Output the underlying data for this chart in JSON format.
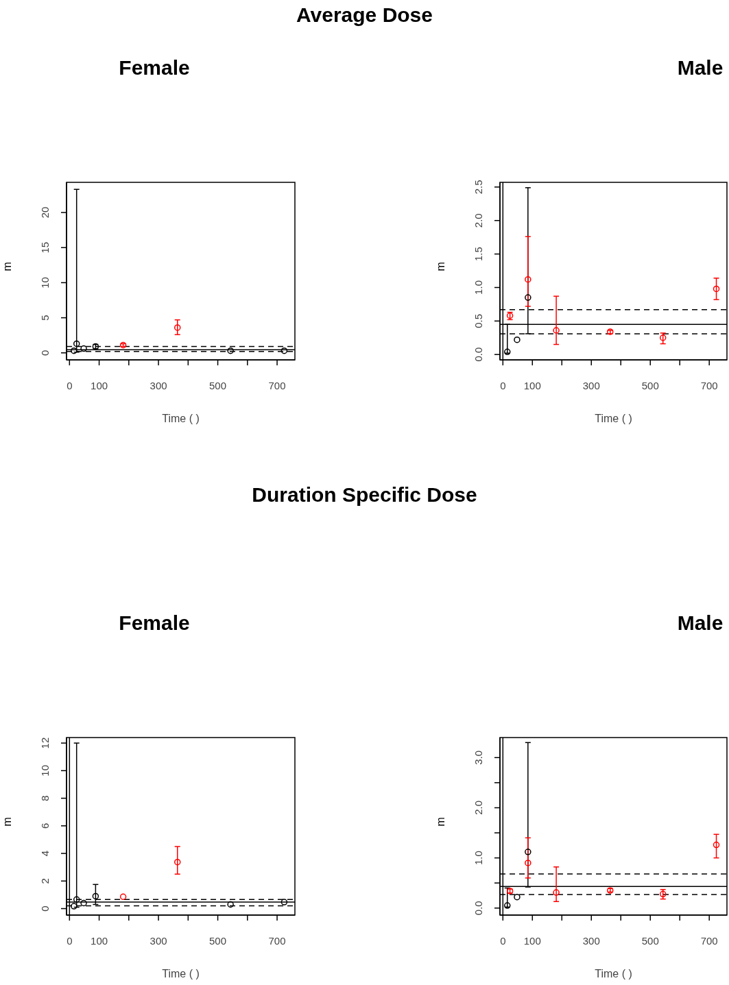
{
  "chart_data": [
    {
      "type": "scatter",
      "title": "Average Dose",
      "subtitle": "Female",
      "xlabel": "Time ( )",
      "ylabel": "m",
      "marker": "circle",
      "xlim": [
        -10,
        760
      ],
      "xticks": [
        0,
        100,
        {
          "value": 200,
          "label": null
        },
        300,
        {
          "value": 400,
          "label": null
        },
        500,
        {
          "value": 600,
          "label": null
        },
        700
      ],
      "ylim": [
        -1,
        24.3
      ],
      "yticks": [
        0,
        5,
        10,
        15,
        20
      ],
      "series": [
        {
          "color": "#000000",
          "x": [
            15,
            24,
            48,
            88,
            543,
            724
          ],
          "values": [
            0.3,
            1.3,
            0.6,
            0.9,
            0.3,
            0.3
          ],
          "errors": [
            null,
            [
              0.1,
              23.3
            ],
            null,
            [
              0.6,
              1.2
            ],
            null,
            null
          ]
        },
        {
          "color": "#ff0000",
          "x": [
            181,
            364
          ],
          "values": [
            1.1,
            3.6
          ],
          "errors": [
            [
              0.9,
              1.3
            ],
            [
              2.6,
              4.7
            ]
          ]
        }
      ],
      "ref_lines": [
        {
          "axis": "y",
          "value": 0.9,
          "line_style": "dashed"
        },
        {
          "axis": "y",
          "value": 0.45,
          "line_style": "solid"
        },
        {
          "axis": "y",
          "value": 0.2,
          "line_style": "dashed"
        }
      ]
    },
    {
      "type": "scatter",
      "subtitle": "Male",
      "xlabel": "Time ( )",
      "ylabel": "m",
      "marker": "circle",
      "xlim": [
        -10,
        760
      ],
      "xticks": [
        0,
        100,
        {
          "value": 200,
          "label": null
        },
        300,
        {
          "value": 400,
          "label": null
        },
        500,
        {
          "value": 600,
          "label": null
        },
        700
      ],
      "ylim": [
        -0.08,
        2.57
      ],
      "yticks": [
        {
          "value": 0,
          "label": "0.0"
        },
        {
          "value": 0.5,
          "label": "0.5"
        },
        {
          "value": 1,
          "label": "1.0"
        },
        {
          "value": 1.5,
          "label": "1.5"
        },
        {
          "value": 2,
          "label": "2.0"
        },
        {
          "value": 2.5,
          "label": "2.5"
        }
      ],
      "series": [
        {
          "color": "#000000",
          "x": [
            15,
            48,
            85
          ],
          "values": [
            0.04,
            0.22,
            0.85
          ],
          "errors": [
            [
              0.02,
              0.45
            ],
            null,
            [
              0.31,
              2.49
            ]
          ]
        },
        {
          "color": "#ff0000",
          "x": [
            24,
            85,
            181,
            364,
            543,
            724
          ],
          "values": [
            0.58,
            1.12,
            0.36,
            0.34,
            0.25,
            0.98
          ],
          "errors": [
            [
              0.52,
              0.63
            ],
            [
              0.72,
              1.76
            ],
            [
              0.15,
              0.87
            ],
            [
              0.31,
              0.36
            ],
            [
              0.16,
              0.32
            ],
            [
              0.82,
              1.14
            ]
          ]
        }
      ],
      "ref_lines": [
        {
          "axis": "x",
          "value": 0,
          "line_style": "solid"
        },
        {
          "axis": "y",
          "value": 0.67,
          "line_style": "dashed"
        },
        {
          "axis": "y",
          "value": 0.45,
          "line_style": "solid"
        },
        {
          "axis": "y",
          "value": 0.31,
          "line_style": "dashed"
        }
      ]
    },
    {
      "type": "scatter",
      "title": "Duration Specific Dose",
      "subtitle": "Female",
      "xlabel": "Time ( )",
      "ylabel": "m",
      "marker": "circle",
      "xlim": [
        -10,
        760
      ],
      "xticks": [
        0,
        100,
        {
          "value": 200,
          "label": null
        },
        300,
        {
          "value": 400,
          "label": null
        },
        500,
        {
          "value": 600,
          "label": null
        },
        700
      ],
      "ylim": [
        -0.47,
        12.4
      ],
      "yticks": [
        0,
        2,
        4,
        6,
        8,
        10,
        12
      ],
      "series": [
        {
          "color": "#000000",
          "x": [
            15,
            24,
            48,
            88,
            543,
            724
          ],
          "values": [
            0.17,
            0.66,
            0.4,
            0.9,
            0.3,
            0.47
          ],
          "errors": [
            null,
            [
              0.1,
              12
            ],
            null,
            [
              0.3,
              1.75
            ],
            null,
            null
          ]
        },
        {
          "color": "#ff0000",
          "x": [
            181,
            364
          ],
          "values": [
            0.86,
            3.37
          ],
          "errors": [
            null,
            [
              2.5,
              4.5
            ]
          ]
        }
      ],
      "ref_lines": [
        {
          "axis": "x",
          "value": 0,
          "line_style": "solid"
        },
        {
          "axis": "y",
          "value": 0.66,
          "line_style": "dashed"
        },
        {
          "axis": "y",
          "value": 0.47,
          "line_style": "solid"
        },
        {
          "axis": "y",
          "value": 0.2,
          "line_style": "dashed"
        }
      ]
    },
    {
      "type": "scatter",
      "subtitle": "Male",
      "xlabel": "Time ( )",
      "ylabel": "m",
      "marker": "circle",
      "xlim": [
        -10,
        760
      ],
      "xticks": [
        0,
        100,
        {
          "value": 200,
          "label": null
        },
        300,
        {
          "value": 400,
          "label": null
        },
        500,
        {
          "value": 600,
          "label": null
        },
        700
      ],
      "ylim": [
        -0.14,
        3.4
      ],
      "yticks": [
        {
          "value": 0,
          "label": "0.0"
        },
        {
          "value": 0.5,
          "label": null
        },
        {
          "value": 1,
          "label": "1.0"
        },
        {
          "value": 1.5,
          "label": null
        },
        {
          "value": 2,
          "label": "2.0"
        },
        {
          "value": 2.5,
          "label": null
        },
        {
          "value": 3,
          "label": "3.0"
        }
      ],
      "series": [
        {
          "color": "#000000",
          "x": [
            15,
            48,
            85
          ],
          "values": [
            0.05,
            0.22,
            1.12
          ],
          "errors": [
            [
              0.02,
              0.4
            ],
            null,
            [
              0.42,
              3.3
            ]
          ]
        },
        {
          "color": "#ff0000",
          "x": [
            24,
            85,
            181,
            364,
            543,
            724
          ],
          "values": [
            0.34,
            0.9,
            0.31,
            0.35,
            0.28,
            1.26
          ],
          "errors": [
            [
              0.3,
              0.38
            ],
            [
              0.6,
              1.4
            ],
            [
              0.13,
              0.82
            ],
            [
              0.32,
              0.39
            ],
            [
              0.18,
              0.37
            ],
            [
              1.0,
              1.47
            ]
          ]
        }
      ],
      "ref_lines": [
        {
          "axis": "x",
          "value": 0,
          "line_style": "solid"
        },
        {
          "axis": "y",
          "value": 0.68,
          "line_style": "dashed"
        },
        {
          "axis": "y",
          "value": 0.43,
          "line_style": "solid"
        },
        {
          "axis": "y",
          "value": 0.27,
          "line_style": "dashed"
        }
      ]
    }
  ]
}
